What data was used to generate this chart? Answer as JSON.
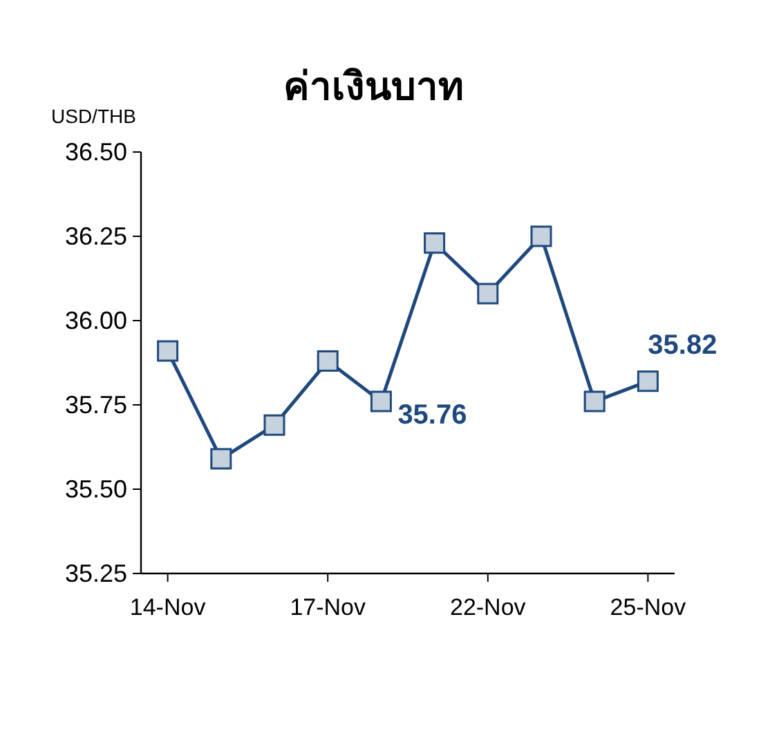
{
  "chart_data": {
    "type": "line",
    "title": "ค่าเงินบาท",
    "ylabel": "USD/THB",
    "categories": [
      "14-Nov",
      null,
      null,
      "17-Nov",
      null,
      null,
      "22-Nov",
      null,
      null,
      "25-Nov"
    ],
    "series": [
      {
        "color": "#1f497d",
        "values": [
          35.91,
          35.59,
          35.69,
          35.88,
          35.76,
          36.23,
          36.08,
          36.25,
          35.76,
          35.82
        ],
        "value_labels": [
          null,
          null,
          null,
          null,
          "35.76",
          null,
          null,
          null,
          null,
          "35.82"
        ]
      }
    ],
    "ylim": [
      35.25,
      36.5
    ],
    "yticks": [
      {
        "value": 35.25,
        "label": "35.25"
      },
      {
        "value": 35.5,
        "label": "35.50"
      },
      {
        "value": 35.75,
        "label": "35.75"
      },
      {
        "value": 36.0,
        "label": "36.00"
      },
      {
        "value": 36.25,
        "label": "36.25"
      },
      {
        "value": 36.5,
        "label": "36.50"
      }
    ],
    "marker": "square",
    "line_style": "solid",
    "grid": false
  }
}
